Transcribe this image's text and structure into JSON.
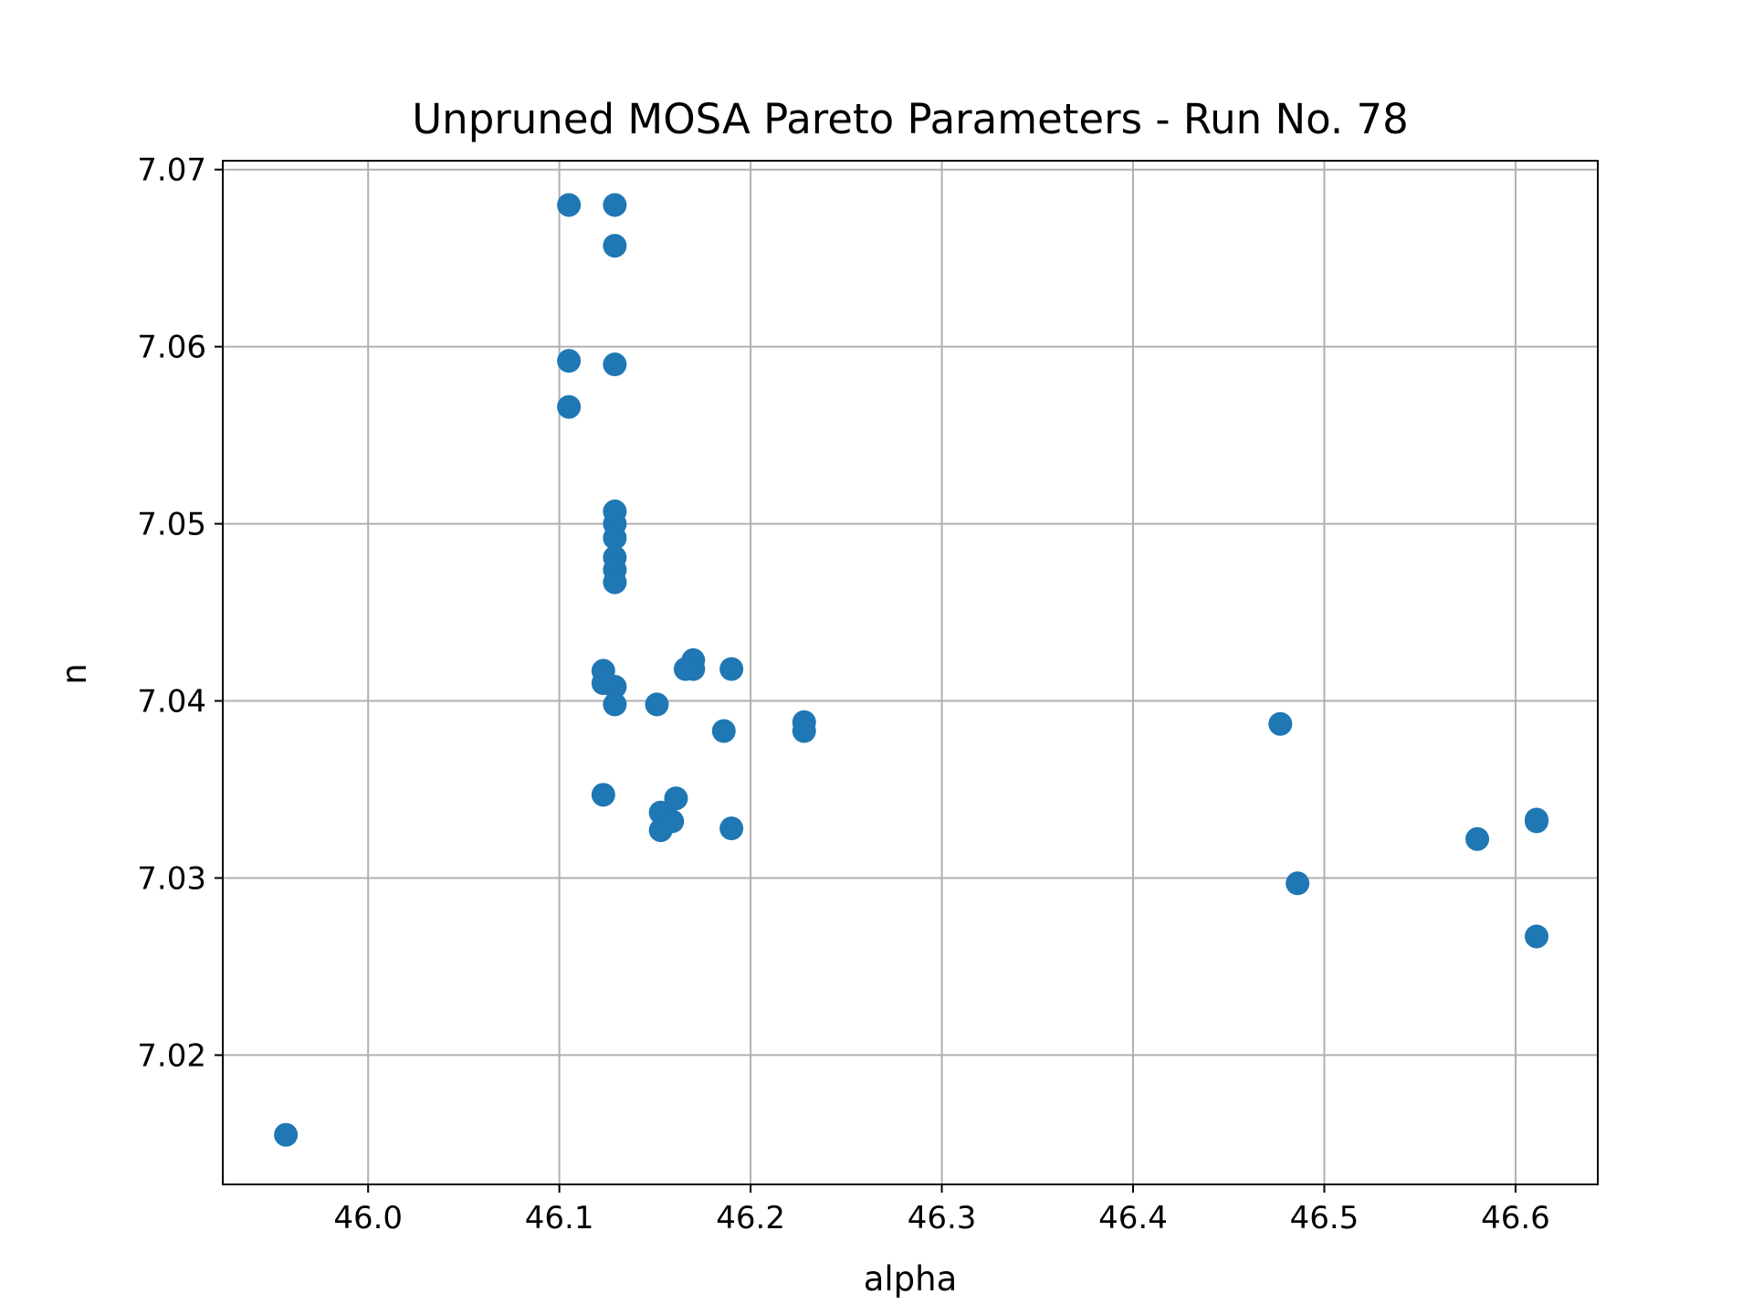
{
  "chart_data": {
    "type": "scatter",
    "title": "Unpruned MOSA Pareto Parameters - Run No. 78",
    "xlabel": "alpha",
    "ylabel": "n",
    "xlim": [
      45.924,
      46.643
    ],
    "ylim": [
      7.0127,
      7.0705
    ],
    "xticks": [
      46.0,
      46.1,
      46.2,
      46.3,
      46.4,
      46.5,
      46.6
    ],
    "xtick_labels": [
      "46.0",
      "46.1",
      "46.2",
      "46.3",
      "46.4",
      "46.5",
      "46.6"
    ],
    "yticks": [
      7.02,
      7.03,
      7.04,
      7.05,
      7.06,
      7.07
    ],
    "ytick_labels": [
      "7.02",
      "7.03",
      "7.04",
      "7.05",
      "7.06",
      "7.07"
    ],
    "grid": true,
    "marker_color": "#1f77b4",
    "points": [
      {
        "x": 46.105,
        "y": 7.068
      },
      {
        "x": 46.129,
        "y": 7.068
      },
      {
        "x": 46.129,
        "y": 7.0657
      },
      {
        "x": 46.105,
        "y": 7.0592
      },
      {
        "x": 46.129,
        "y": 7.059
      },
      {
        "x": 46.105,
        "y": 7.0566
      },
      {
        "x": 46.129,
        "y": 7.0507
      },
      {
        "x": 46.129,
        "y": 7.05
      },
      {
        "x": 46.129,
        "y": 7.0492
      },
      {
        "x": 46.129,
        "y": 7.0481
      },
      {
        "x": 46.129,
        "y": 7.0474
      },
      {
        "x": 46.129,
        "y": 7.0467
      },
      {
        "x": 46.123,
        "y": 7.0417
      },
      {
        "x": 46.123,
        "y": 7.041
      },
      {
        "x": 46.129,
        "y": 7.0408
      },
      {
        "x": 46.129,
        "y": 7.0398
      },
      {
        "x": 46.151,
        "y": 7.0398
      },
      {
        "x": 46.17,
        "y": 7.0423
      },
      {
        "x": 46.17,
        "y": 7.0418
      },
      {
        "x": 46.166,
        "y": 7.0418
      },
      {
        "x": 46.19,
        "y": 7.0418
      },
      {
        "x": 46.186,
        "y": 7.0383
      },
      {
        "x": 46.228,
        "y": 7.0388
      },
      {
        "x": 46.228,
        "y": 7.0383
      },
      {
        "x": 46.123,
        "y": 7.0347
      },
      {
        "x": 46.161,
        "y": 7.0345
      },
      {
        "x": 46.153,
        "y": 7.0337
      },
      {
        "x": 46.159,
        "y": 7.0332
      },
      {
        "x": 46.153,
        "y": 7.0327
      },
      {
        "x": 46.19,
        "y": 7.0328
      },
      {
        "x": 46.477,
        "y": 7.0387
      },
      {
        "x": 46.486,
        "y": 7.0297
      },
      {
        "x": 46.58,
        "y": 7.0322
      },
      {
        "x": 46.611,
        "y": 7.0333
      },
      {
        "x": 46.611,
        "y": 7.0332
      },
      {
        "x": 46.611,
        "y": 7.0267
      },
      {
        "x": 45.957,
        "y": 7.0155
      }
    ]
  }
}
